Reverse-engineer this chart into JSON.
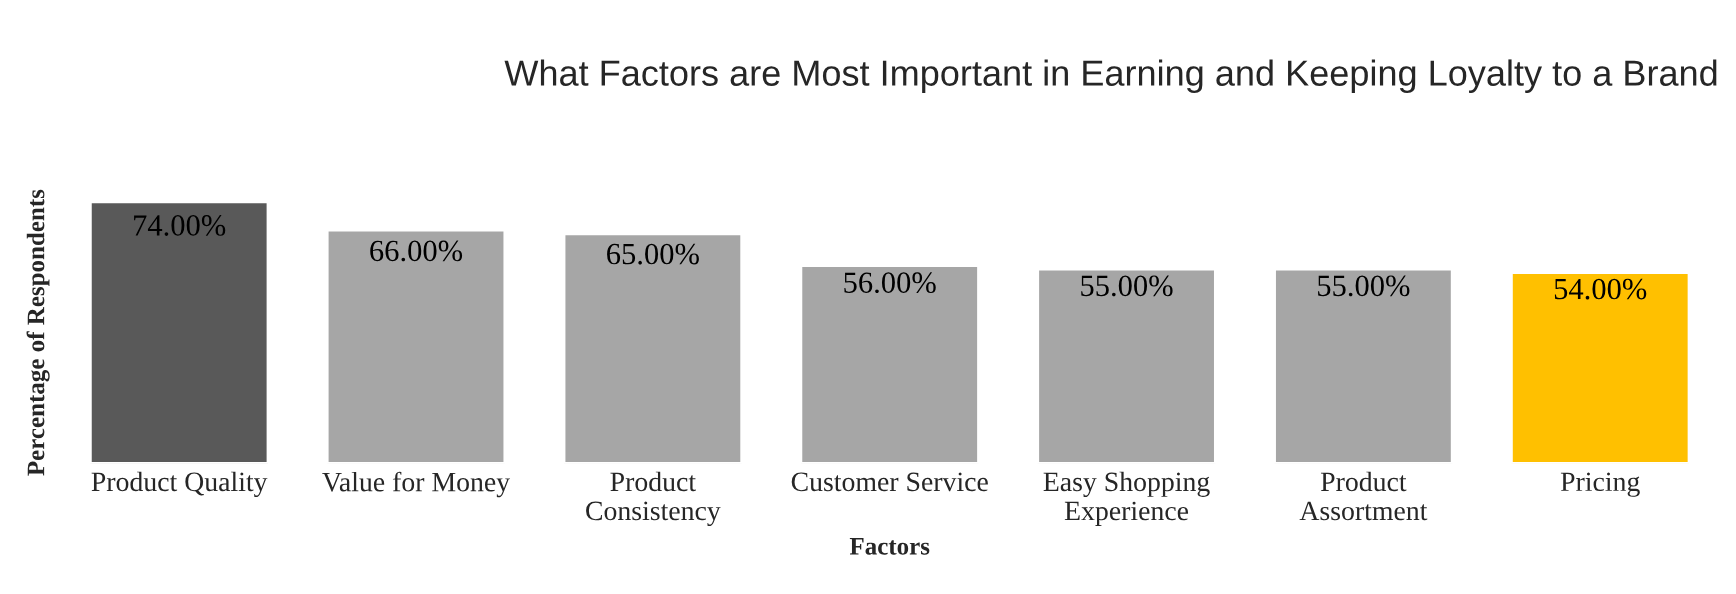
{
  "chart_data": {
    "type": "bar",
    "title": "What Factors are Most Important in Earning and Keeping Loyalty to a Brand",
    "xlabel": "Factors",
    "ylabel": "Percentage of Respondents",
    "categories": [
      "Product Quality",
      "Value for Money",
      "Product\nConsistency",
      "Customer Service",
      "Easy Shopping\nExperience",
      "Product\nAssortment",
      "Pricing"
    ],
    "values": [
      74,
      66,
      65,
      56,
      55,
      55,
      54
    ],
    "value_labels": [
      "74.00%",
      "66.00%",
      "65.00%",
      "56.00%",
      "55.00%",
      "55.00%",
      "54.00%"
    ],
    "colors": [
      "#595959",
      "#a6a6a6",
      "#a6a6a6",
      "#a6a6a6",
      "#a6a6a6",
      "#a6a6a6",
      "#ffc000"
    ],
    "grid": false,
    "legend": false
  }
}
